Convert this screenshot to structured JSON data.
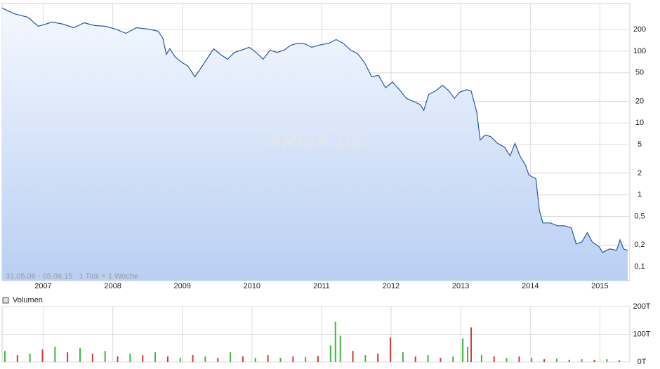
{
  "chart_data": [
    {
      "type": "line",
      "annotation": "31.05.06 - 05.06.15   1 Tick = 1 Woche",
      "watermark": "ARIVA.DE",
      "x": [
        2006.41,
        2006.58,
        2006.78,
        2006.93,
        2007.03,
        2007.13,
        2007.29,
        2007.44,
        2007.59,
        2007.74,
        2007.89,
        2008.04,
        2008.19,
        2008.34,
        2008.5,
        2008.65,
        2008.72,
        2008.77,
        2008.82,
        2008.9,
        2009.0,
        2009.08,
        2009.18,
        2009.25,
        2009.35,
        2009.45,
        2009.55,
        2009.65,
        2009.75,
        2009.85,
        2009.96,
        2010.06,
        2010.16,
        2010.26,
        2010.36,
        2010.46,
        2010.56,
        2010.66,
        2010.76,
        2010.86,
        2010.96,
        2011.11,
        2011.21,
        2011.31,
        2011.42,
        2011.52,
        2011.62,
        2011.72,
        2011.82,
        2011.92,
        2012.02,
        2012.12,
        2012.22,
        2012.32,
        2012.42,
        2012.47,
        2012.54,
        2012.64,
        2012.74,
        2012.83,
        2012.91,
        2012.98,
        2013.08,
        2013.15,
        2013.23,
        2013.28,
        2013.35,
        2013.43,
        2013.53,
        2013.63,
        2013.71,
        2013.78,
        2013.85,
        2013.93,
        2013.98,
        2014.08,
        2014.13,
        2014.18,
        2014.29,
        2014.39,
        2014.49,
        2014.59,
        2014.66,
        2014.74,
        2014.82,
        2014.89,
        2014.99,
        2015.04,
        2015.14,
        2015.24,
        2015.29,
        2015.34,
        2015.4
      ],
      "series": [
        {
          "color": "#2458a6",
          "fill_top": "#f4f8fe",
          "fill_bottom": "#b9cff3",
          "values": [
            398,
            333,
            297,
            222,
            237,
            254,
            237,
            212,
            248,
            227,
            222,
            203,
            177,
            212,
            203,
            190,
            151,
            90,
            108,
            82,
            69,
            62,
            44,
            55,
            77,
            108,
            90,
            77,
            96,
            103,
            113,
            96,
            77,
            103,
            96,
            103,
            121,
            129,
            126,
            113,
            121,
            129,
            145,
            129,
            103,
            92,
            69,
            44,
            46,
            31,
            37,
            29,
            22,
            20,
            18,
            15,
            25,
            28,
            33.5,
            28,
            22,
            26.7,
            29,
            28,
            14.2,
            5.8,
            6.8,
            6.5,
            5.2,
            4.6,
            3.5,
            5.2,
            3.5,
            2.6,
            1.88,
            1.68,
            0.61,
            0.406,
            0.406,
            0.371,
            0.371,
            0.347,
            0.207,
            0.221,
            0.297,
            0.221,
            0.189,
            0.158,
            0.177,
            0.169,
            0.237,
            0.177,
            0.169
          ]
        }
      ],
      "xlim": [
        2006.41,
        2015.43
      ],
      "xticks": [
        2007,
        2008,
        2009,
        2010,
        2011,
        2012,
        2013,
        2014,
        2015
      ],
      "ylim": [
        0.064,
        460
      ],
      "yticks": [
        {
          "value": 0.1,
          "label": "0,1"
        },
        {
          "value": 0.2,
          "label": "0,2"
        },
        {
          "value": 0.5,
          "label": "0,5"
        },
        1,
        2,
        5,
        10,
        20,
        50,
        100,
        200
      ],
      "log_scale": true,
      "grid": true
    },
    {
      "type": "bar",
      "x": [
        2006.45,
        2006.63,
        2006.81,
        2006.99,
        2007.17,
        2007.35,
        2007.53,
        2007.71,
        2007.89,
        2008.07,
        2008.25,
        2008.43,
        2008.61,
        2008.79,
        2008.97,
        2009.15,
        2009.33,
        2009.51,
        2009.69,
        2009.87,
        2010.05,
        2010.23,
        2010.41,
        2010.59,
        2010.77,
        2010.95,
        2011.13,
        2011.2,
        2011.27,
        2011.45,
        2011.63,
        2011.81,
        2011.99,
        2012.17,
        2012.35,
        2012.53,
        2012.71,
        2012.89,
        2013.03,
        2013.1,
        2013.15,
        2013.3,
        2013.48,
        2013.66,
        2013.84,
        2014.02,
        2014.2,
        2014.38,
        2014.56,
        2014.74,
        2014.92,
        2015.1,
        2015.28
      ],
      "series": [
        {
          "name": "Volumen",
          "values": [
            40000,
            25000,
            30000,
            45000,
            55000,
            35000,
            50000,
            30000,
            40000,
            20000,
            30000,
            25000,
            35000,
            20000,
            15000,
            25000,
            20000,
            15000,
            35000,
            20000,
            15000,
            25000,
            15000,
            20000,
            18000,
            22000,
            60000,
            145000,
            95000,
            40000,
            25000,
            30000,
            88000,
            35000,
            20000,
            25000,
            15000,
            20000,
            85000,
            55000,
            125000,
            25000,
            20000,
            15000,
            20000,
            15000,
            10000,
            12000,
            8000,
            10000,
            8000,
            10000,
            6000
          ],
          "colors": [
            "#3cb83c",
            "#d23a3a",
            "#3cb83c",
            "#d23a3a",
            "#3cb83c",
            "#d23a3a",
            "#3cb83c",
            "#d23a3a",
            "#3cb83c",
            "#d23a3a",
            "#3cb83c",
            "#d23a3a",
            "#3cb83c",
            "#d23a3a",
            "#3cb83c",
            "#d23a3a",
            "#3cb83c",
            "#d23a3a",
            "#3cb83c",
            "#d23a3a",
            "#3cb83c",
            "#d23a3a",
            "#3cb83c",
            "#d23a3a",
            "#3cb83c",
            "#d23a3a",
            "#3cb83c",
            "#3cb83c",
            "#3cb83c",
            "#d23a3a",
            "#3cb83c",
            "#d23a3a",
            "#d23a3a",
            "#3cb83c",
            "#d23a3a",
            "#3cb83c",
            "#d23a3a",
            "#3cb83c",
            "#3cb83c",
            "#3cb83c",
            "#d23a3a",
            "#3cb83c",
            "#d23a3a",
            "#3cb83c",
            "#d23a3a",
            "#3cb83c",
            "#d23a3a",
            "#3cb83c",
            "#d23a3a",
            "#3cb83c",
            "#d23a3a",
            "#3cb83c",
            "#d23a3a"
          ]
        }
      ],
      "xlim": [
        2006.41,
        2015.43
      ],
      "ylim": [
        0,
        200000
      ],
      "yticks": [
        {
          "value": 0,
          "label": "0T"
        },
        {
          "value": 100000,
          "label": "100T"
        },
        {
          "value": 200000,
          "label": "200T"
        }
      ],
      "grid": true
    }
  ]
}
